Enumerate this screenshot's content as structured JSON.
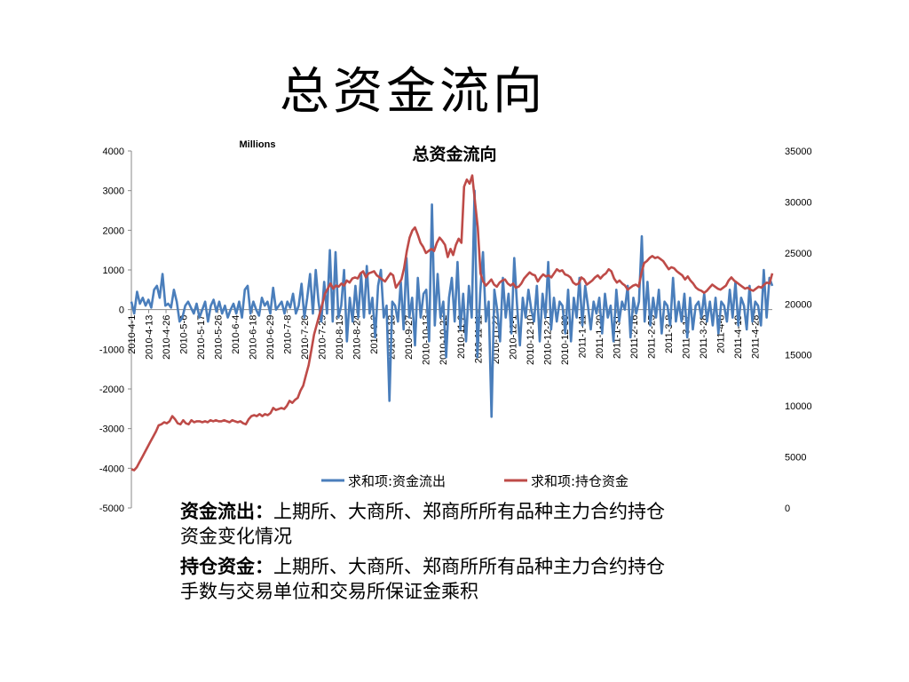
{
  "slide": {
    "title": "总资金流向"
  },
  "chart_data": {
    "type": "line",
    "title": "总资金流向",
    "left_axis_unit": "Millions",
    "left_axis": {
      "min": -5000,
      "max": 4000,
      "ticks": [
        "4000",
        "3000",
        "2000",
        "1000",
        "0",
        "-1000",
        "-2000",
        "-3000",
        "-4000",
        "-5000"
      ]
    },
    "right_axis": {
      "min": 0,
      "max": 35000,
      "ticks": [
        "35000",
        "30000",
        "25000",
        "20000",
        "15000",
        "10000",
        "5000",
        "0"
      ]
    },
    "x_tick_labels": [
      "2010-4-1",
      "2010-4-13",
      "2010-4-26",
      "2010-5-6",
      "2010-5-17",
      "2010-5-26",
      "2010-6-4",
      "2010-6-18",
      "2010-6-29",
      "2010-7-8",
      "2010-7-20",
      "2010-7-29",
      "2010-8-13",
      "2010-8-24",
      "2010-9-2",
      "2010-9-13",
      "2010-9-27",
      "2010-10-13",
      "2010-10-22",
      "2010-11-2",
      "2010-11-11",
      "2010-11-22",
      "2010-12-1",
      "2010-12-10",
      "2010-12-21",
      "2010-12-30",
      "2011-1-11",
      "2011-1-20",
      "2011-1-31",
      "2011-2-16",
      "2011-2-25",
      "2011-3-8",
      "2011-3-17",
      "2011-3-28",
      "2011-4-8",
      "2011-4-19",
      "2011-4-28"
    ],
    "legend_position": "bottom",
    "series": [
      {
        "name": "求和项:资金流出",
        "axis": "left",
        "color": "#4a7ebb",
        "values": [
          200,
          -100,
          450,
          150,
          300,
          100,
          250,
          50,
          500,
          600,
          300,
          900,
          100,
          150,
          50,
          500,
          200,
          -300,
          -200,
          100,
          200,
          50,
          -100,
          150,
          -200,
          0,
          200,
          -300,
          100,
          250,
          -50,
          200,
          -100,
          100,
          -200,
          0,
          150,
          -100,
          200,
          -200,
          500,
          600,
          -100,
          200,
          0,
          -150,
          300,
          100,
          200,
          -100,
          550,
          0,
          100,
          200,
          -100,
          200,
          50,
          400,
          -100,
          100,
          650,
          -200,
          300,
          900,
          -100,
          1000,
          200,
          -300,
          700,
          -100,
          1500,
          -300,
          1450,
          -200,
          100,
          1000,
          -800,
          300,
          -300,
          600,
          -200,
          900,
          -200,
          1100,
          -100,
          300,
          -700,
          600,
          1000,
          -200,
          100,
          -2300,
          200,
          100,
          -300,
          700,
          -500,
          1300,
          -200,
          300,
          -900,
          800,
          -200,
          400,
          500,
          -800,
          2650,
          -400,
          900,
          -200,
          200,
          -1200,
          300,
          800,
          -300,
          1200,
          -500,
          400,
          -800,
          600,
          -200,
          3000,
          -1200,
          400,
          1450,
          -300,
          200,
          -2700,
          500,
          0,
          -800,
          800,
          -200,
          400,
          -600,
          1300,
          100,
          -900,
          300,
          -200,
          500,
          0,
          -300,
          600,
          -800,
          400,
          -200,
          1200,
          -500,
          300,
          -300,
          200,
          100,
          -600,
          500,
          -800,
          300,
          -200,
          800,
          -400,
          600,
          100,
          -500,
          200,
          -100,
          300,
          -600,
          400,
          -200,
          100,
          -800,
          500,
          -300,
          200,
          0,
          600,
          -700,
          300,
          -100,
          200,
          1850,
          -300,
          700,
          -400,
          300,
          -200,
          500,
          -600,
          200,
          100,
          -400,
          800,
          -300,
          200,
          -300,
          400,
          -700,
          300,
          -500,
          100,
          200,
          -200,
          400,
          -300,
          200,
          -400,
          300,
          -600,
          200,
          100,
          -300,
          500,
          -200,
          700,
          -400,
          300,
          100,
          -500,
          600,
          -300,
          200,
          100,
          -400,
          1000,
          -200,
          800,
          600
        ]
      },
      {
        "name": "求和项:持仓资金",
        "axis": "right",
        "color": "#be4b48",
        "values": [
          3800,
          3700,
          4000,
          4500,
          5000,
          5500,
          6000,
          6500,
          7000,
          7500,
          8100,
          8200,
          8400,
          8300,
          8500,
          9000,
          8700,
          8300,
          8200,
          8600,
          8300,
          8200,
          8600,
          8400,
          8500,
          8500,
          8400,
          8500,
          8400,
          8600,
          8500,
          8600,
          8500,
          8500,
          8600,
          8500,
          8400,
          8600,
          8500,
          8400,
          8500,
          8300,
          8200,
          8700,
          9000,
          9100,
          9000,
          9200,
          9000,
          9200,
          9100,
          9300,
          9800,
          9600,
          9700,
          9800,
          9700,
          10000,
          10500,
          10300,
          10600,
          10800,
          11500,
          12000,
          13000,
          14000,
          15500,
          17000,
          18000,
          19000,
          20000,
          21000,
          21500,
          22000,
          21500,
          21800,
          21700,
          22000,
          21800,
          22300,
          22100,
          22500,
          22600,
          22500,
          23000,
          23200,
          22600,
          23000,
          23100,
          23200,
          22800,
          22600,
          22400,
          22200,
          22600,
          23000,
          22800,
          21600,
          22000,
          22400,
          23500,
          25200,
          26500,
          27200,
          27500,
          26800,
          26000,
          25600,
          25000,
          25200,
          25400,
          25200,
          26000,
          26500,
          26200,
          25800,
          24600,
          25400,
          24800,
          25800,
          26400,
          26000,
          31500,
          32200,
          31800,
          32600,
          30000,
          27500,
          23000,
          22200,
          21800,
          22100,
          22400,
          21900,
          21700,
          22100,
          22300,
          22400,
          22000,
          21800,
          22000,
          21600,
          21700,
          22000,
          22500,
          22800,
          23100,
          22900,
          22800,
          22200,
          22600,
          22900,
          22700,
          22800,
          22600,
          23000,
          23400,
          23200,
          23300,
          22900,
          22800,
          22600,
          22100,
          21900,
          22000,
          22600,
          22400,
          21900,
          22100,
          22300,
          22600,
          22800,
          22500,
          22800,
          23000,
          23400,
          23200,
          22500,
          22100,
          22300,
          22000,
          21800,
          21400,
          21600,
          21800,
          21900,
          21700,
          23000,
          24000,
          24200,
          24500,
          24700,
          24500,
          24600,
          24400,
          24200,
          23800,
          23400,
          23600,
          23500,
          23200,
          23000,
          22800,
          22400,
          22700,
          22300,
          22000,
          21600,
          21400,
          21300,
          21100,
          21300,
          21600,
          21900,
          21700,
          21500,
          21400,
          21600,
          21800,
          22300,
          22600,
          22300,
          22100,
          21900,
          21700,
          21500,
          21600,
          21400,
          21300,
          21500,
          21700,
          21600,
          21900,
          22100,
          22000,
          23000
        ]
      }
    ]
  },
  "notes": [
    {
      "term": "资金流出：",
      "text": "上期所、大商所、郑商所所有品种主力合约持仓资金变化情况"
    },
    {
      "term": "持仓资金：",
      "text": "上期所、大商所、郑商所所有品种主力合约持仓手数与交易单位和交易所保证金乘积"
    }
  ]
}
